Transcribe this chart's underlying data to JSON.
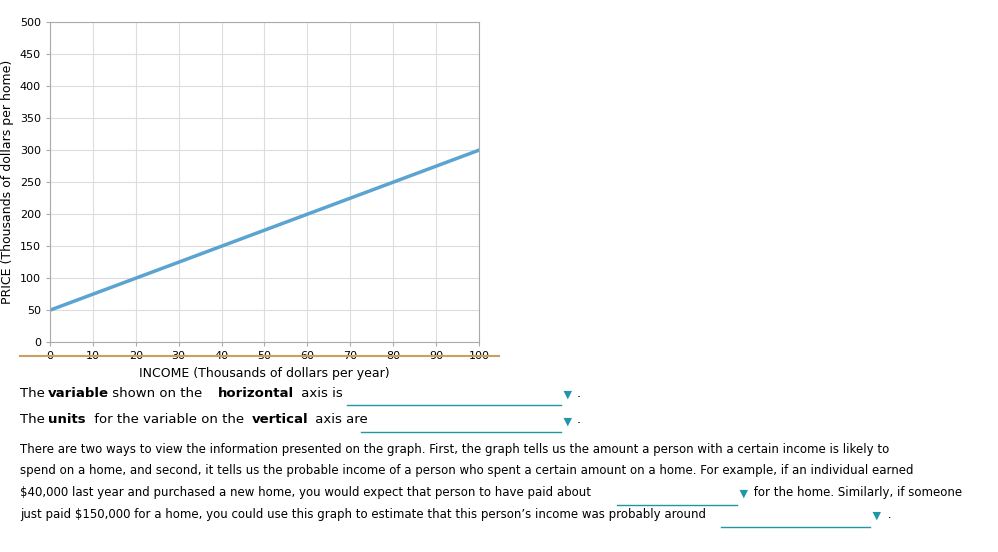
{
  "x_data": [
    0,
    100
  ],
  "y_data": [
    50,
    300
  ],
  "line_color": "#5ba3d0",
  "line_width": 2.5,
  "xlabel": "INCOME (Thousands of dollars per year)",
  "ylabel": "PRICE (Thousands of dollars per home)",
  "xlim": [
    0,
    100
  ],
  "ylim": [
    0,
    500
  ],
  "xticks": [
    0,
    10,
    20,
    30,
    40,
    50,
    60,
    70,
    80,
    90,
    100
  ],
  "yticks": [
    0,
    50,
    100,
    150,
    200,
    250,
    300,
    350,
    400,
    450,
    500
  ],
  "grid_color": "#dddddd",
  "bg_color": "#ffffff",
  "fig_bg_color": "#ffffff",
  "xlabel_fontsize": 9,
  "ylabel_fontsize": 9,
  "tick_fontsize": 8,
  "dropdown_color": "#2196a8",
  "underline_color": "#2196a8",
  "separator_color": "#c8a060"
}
